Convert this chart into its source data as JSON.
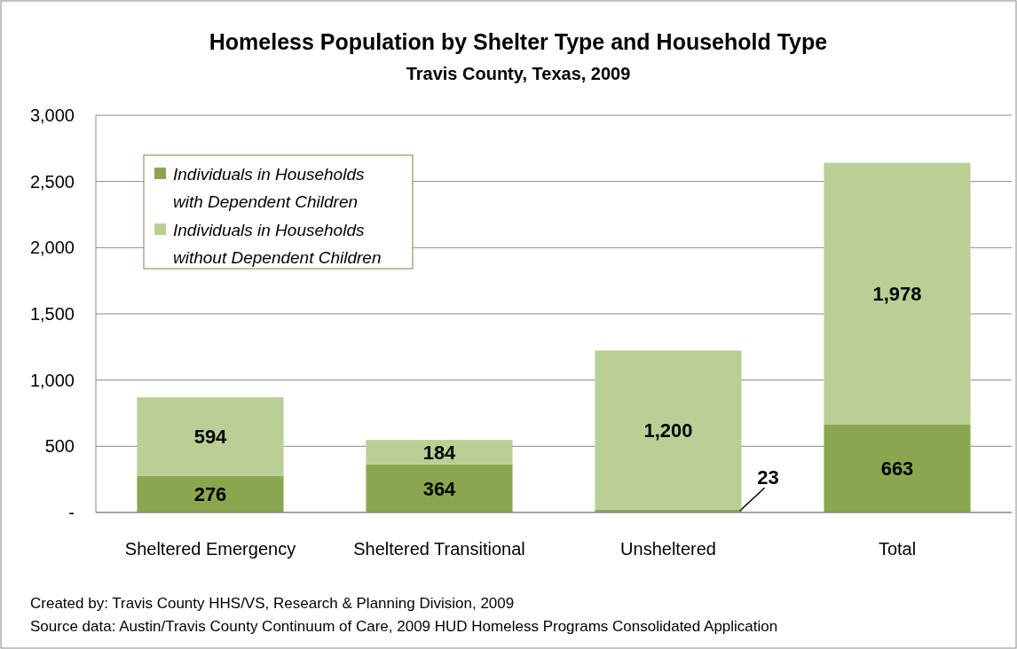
{
  "chart_data": {
    "type": "bar",
    "title": "Homeless Population  by Shelter Type and Household Type",
    "subtitle": "Travis County, Texas, 2009",
    "categories": [
      "Sheltered Emergency",
      "Sheltered Transitional",
      "Unsheltered",
      "Total"
    ],
    "series": [
      {
        "name": "Individuals in Households with Dependent Children",
        "color": "#8aa64f",
        "values": [
          276,
          364,
          23,
          663
        ],
        "value_labels": [
          "276",
          "364",
          "23",
          "663"
        ]
      },
      {
        "name": "Individuals in Households without Dependent Children",
        "color": "#b9cf96",
        "values": [
          594,
          184,
          1200,
          1978
        ],
        "value_labels": [
          "594",
          "184",
          "1,200",
          "1,978"
        ]
      }
    ],
    "stacked": true,
    "ylim": [
      0,
      3000
    ],
    "yticks": [
      {
        "value": 0,
        "label": "-"
      },
      {
        "value": 500,
        "label": "500"
      },
      {
        "value": 1000,
        "label": "1,000"
      },
      {
        "value": 1500,
        "label": "1,500"
      },
      {
        "value": 2000,
        "label": "2,000"
      },
      {
        "value": 2500,
        "label": "2,500"
      },
      {
        "value": 3000,
        "label": "3,000"
      }
    ],
    "grid": "y",
    "legend": "top left",
    "annotations": [
      "Created by: Travis County HHS/VS, Research & Planning Division, 2009",
      "Source data:  Austin/Travis County Continuum of Care, 2009  HUD Homeless Programs Consolidated Application"
    ]
  }
}
